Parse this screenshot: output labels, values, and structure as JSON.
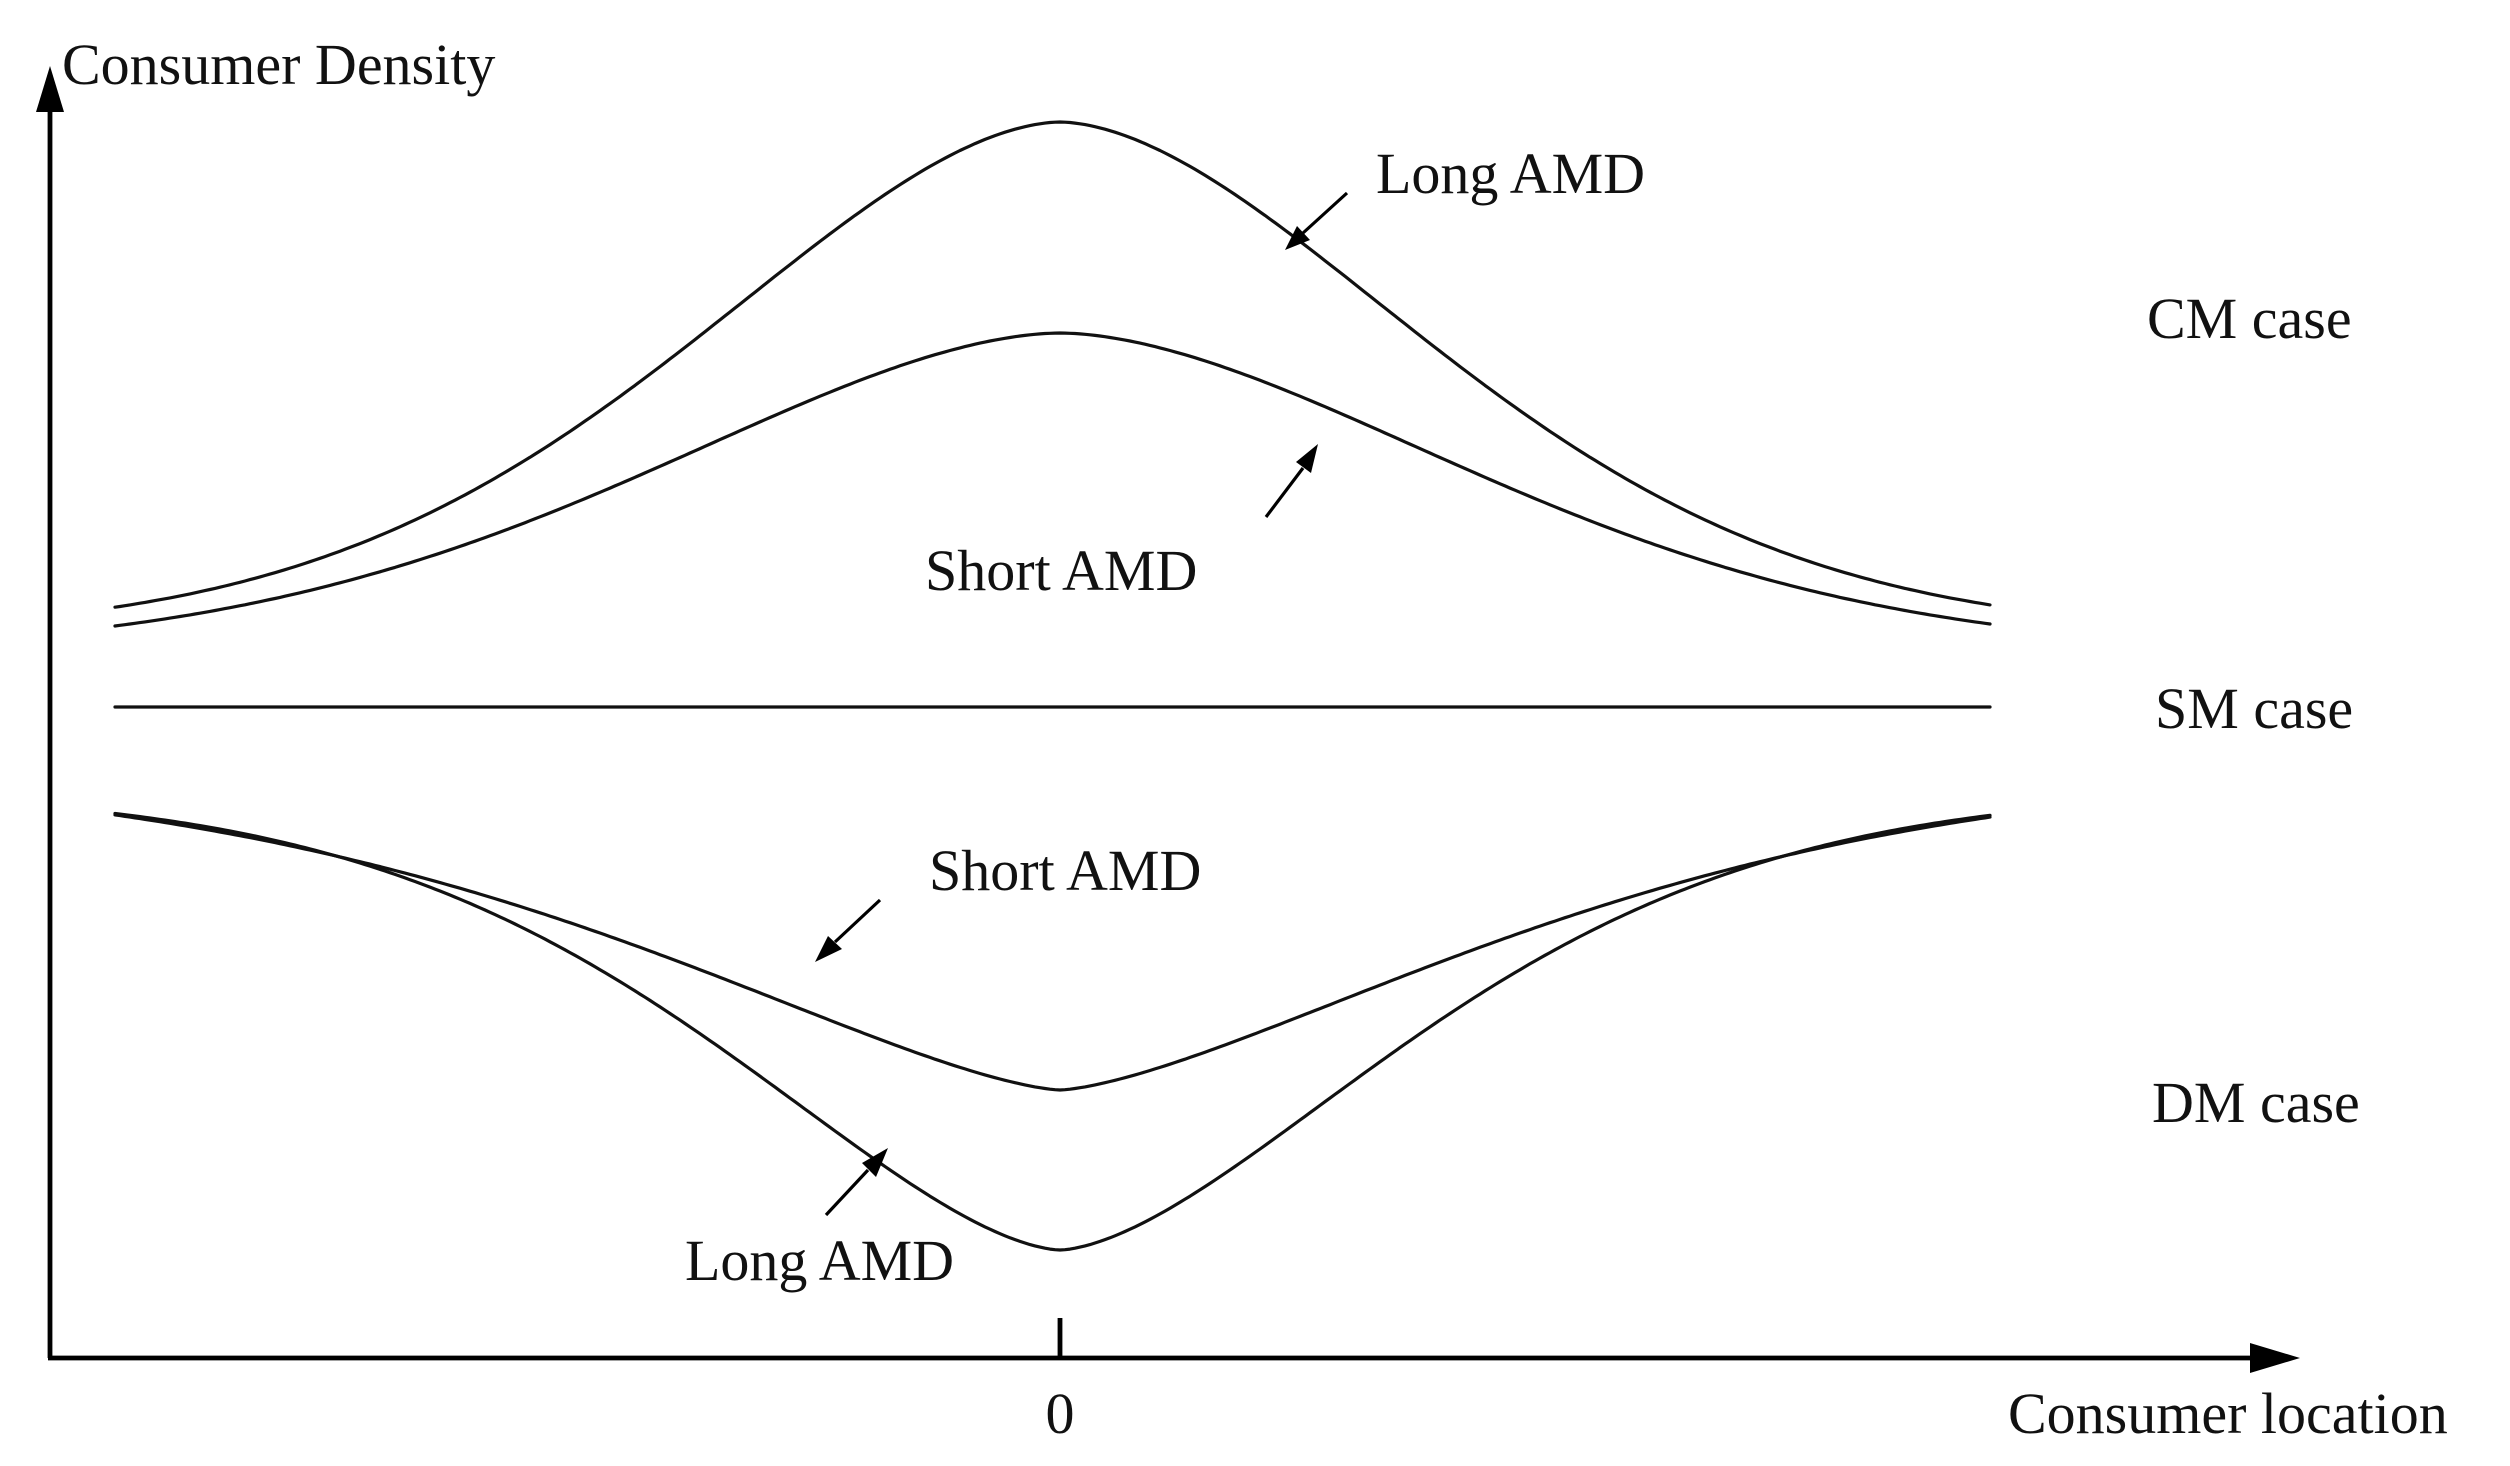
{
  "axes": {
    "y_label": "Consumer Density",
    "x_label": "Consumer location",
    "x_tick_label": "0"
  },
  "cases": {
    "cm": "CM case",
    "sm": "SM case",
    "dm": "DM case"
  },
  "curves": {
    "cm_long": "Long AMD",
    "cm_short": "Short AMD",
    "dm_short": "Short AMD",
    "dm_long": "Long AMD"
  },
  "colors": {
    "ink": "#111111",
    "background": "#ffffff"
  }
}
